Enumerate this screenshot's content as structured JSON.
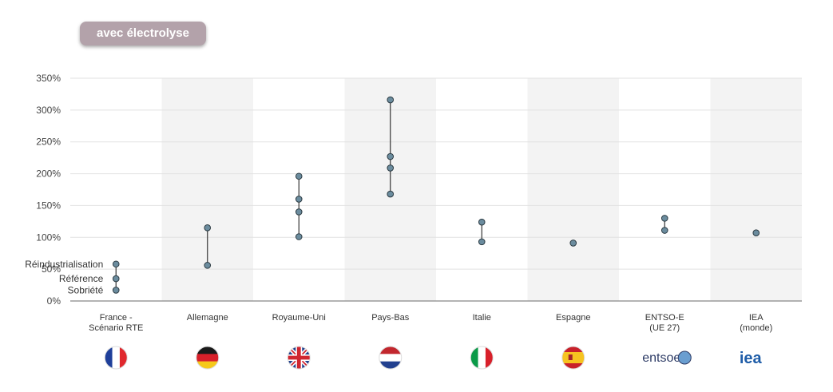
{
  "badge": {
    "label": "avec électrolyse"
  },
  "colors": {
    "point_fill": "#6b8c9e",
    "point_stroke": "#2b3a42",
    "band": "#f3f3f3",
    "badge_bg": "#b3a2aa"
  },
  "chart_data": {
    "type": "scatter",
    "title": "",
    "xlabel": "",
    "ylabel": "",
    "ylim": [
      0,
      350
    ],
    "y_unit": "%",
    "yticks": [
      "0%",
      "50%",
      "100%",
      "150%",
      "200%",
      "250%",
      "300%",
      "350%"
    ],
    "grid": true,
    "categories": [
      {
        "label": "France -\nScénario RTE",
        "values": [
          58,
          35,
          17
        ],
        "icon": "france-flag-icon"
      },
      {
        "label": "Allemagne",
        "values": [
          115,
          56
        ],
        "icon": "germany-flag-icon"
      },
      {
        "label": "Royaume-Uni",
        "values": [
          196,
          160,
          140,
          101
        ],
        "icon": "uk-flag-icon"
      },
      {
        "label": "Pays-Bas",
        "values": [
          316,
          227,
          209,
          168
        ],
        "icon": "netherlands-flag-icon"
      },
      {
        "label": "Italie",
        "values": [
          124,
          93
        ],
        "icon": "italy-flag-icon"
      },
      {
        "label": "Espagne",
        "values": [
          91
        ],
        "icon": "spain-flag-icon"
      },
      {
        "label": "ENTSO-E\n(UE 27)",
        "values": [
          130,
          111
        ],
        "icon": "entsoe-logo-icon"
      },
      {
        "label": "IEA\n(monde)",
        "values": [
          107
        ],
        "icon": "iea-logo-icon"
      }
    ],
    "annotations": [
      "Réindustrialisation",
      "Référence",
      "Sobriété"
    ]
  },
  "logos": {
    "entsoe": "entsoe",
    "iea": "iea"
  }
}
